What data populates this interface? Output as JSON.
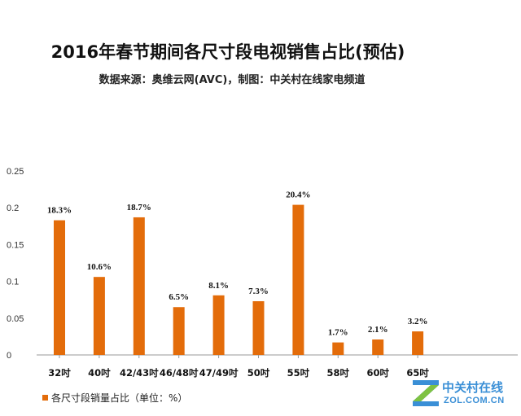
{
  "title": "2016年春节期间各尺寸段电视销售占比(预估)",
  "subtitle": "数据来源：奥维云网(AVC)，制图：中关村在线家电频道",
  "colors": {
    "bar": "#E36C0A",
    "axis": "#999999",
    "logo": "#3a8fd6"
  },
  "chart_data": {
    "type": "bar",
    "categories": [
      "32吋",
      "40吋",
      "42/43吋",
      "46/48吋",
      "47/49吋",
      "50吋",
      "55吋",
      "58吋",
      "60吋",
      "65吋"
    ],
    "series": [
      {
        "name": "各尺寸段销量占比（单位：%）",
        "values": [
          0.183,
          0.106,
          0.187,
          0.065,
          0.081,
          0.073,
          0.204,
          0.017,
          0.021,
          0.032
        ],
        "data_labels": [
          "18.3%",
          "10.6%",
          "18.7%",
          "6.5%",
          "8.1%",
          "7.3%",
          "20.4%",
          "1.7%",
          "2.1%",
          "3.2%"
        ]
      }
    ],
    "y_ticks": [
      "0",
      "0.05",
      "0.1",
      "0.15",
      "0.2",
      "0.25"
    ],
    "ylim": [
      0,
      0.25
    ],
    "grid": false,
    "legend": "bottom-left"
  },
  "legend_label": "各尺寸段销量占比（单位：%）",
  "logo": {
    "cn": "中关村在线",
    "en": "ZOL.COM.CN"
  }
}
